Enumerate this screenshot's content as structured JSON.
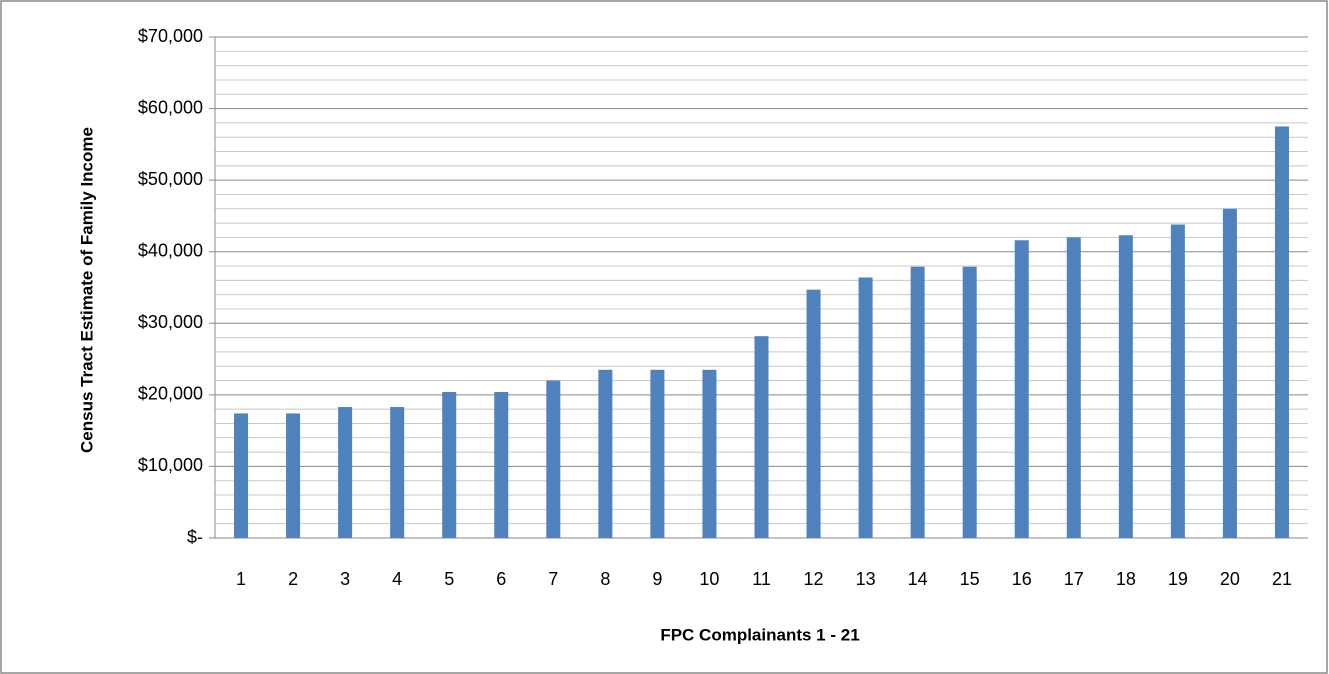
{
  "chart_data": {
    "type": "bar",
    "x_label": "FPC Complainants 1 - 21",
    "y_label": "Census Tract Estimate of Family Income",
    "categories": [
      "1",
      "2",
      "3",
      "4",
      "5",
      "6",
      "7",
      "8",
      "9",
      "10",
      "11",
      "12",
      "13",
      "14",
      "15",
      "16",
      "17",
      "18",
      "19",
      "20",
      "21"
    ],
    "values": [
      17400,
      17400,
      18300,
      18300,
      20400,
      20400,
      22000,
      23500,
      23500,
      23500,
      28200,
      34700,
      36400,
      37900,
      37900,
      41600,
      42000,
      42300,
      43800,
      46000,
      57500
    ],
    "color": "#4f81bd",
    "ylim": [
      0,
      70000
    ],
    "yticks": [
      {
        "value": 0,
        "label": "$-"
      },
      {
        "value": 10000,
        "label": "$10,000"
      },
      {
        "value": 20000,
        "label": "$20,000"
      },
      {
        "value": 30000,
        "label": "$30,000"
      },
      {
        "value": 40000,
        "label": "$40,000"
      },
      {
        "value": 50000,
        "label": "$50,000"
      },
      {
        "value": 60000,
        "label": "$60,000"
      },
      {
        "value": 70000,
        "label": "$70,000"
      }
    ],
    "yminorticks": [
      2000,
      4000,
      6000,
      8000,
      12000,
      14000,
      16000,
      18000,
      22000,
      24000,
      26000,
      28000,
      32000,
      34000,
      36000,
      38000,
      42000,
      44000,
      46000,
      48000,
      52000,
      54000,
      56000,
      58000,
      62000,
      64000,
      66000,
      68000
    ],
    "grid": true
  }
}
